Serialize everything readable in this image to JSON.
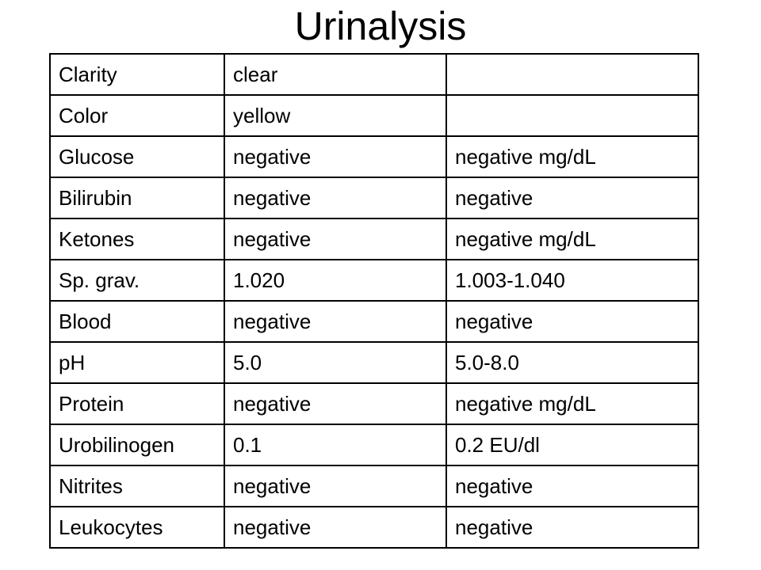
{
  "header": {
    "title": "Urinalysis"
  },
  "table": {
    "rows": [
      [
        "Clarity",
        "clear"
      ],
      [
        "Color",
        "yellow"
      ],
      [
        "Glucose",
        "negative",
        "negative mg/dL"
      ],
      [
        "Bilirubin",
        "negative",
        "negative"
      ],
      [
        "Ketones",
        "negative",
        "negative mg/dL"
      ],
      [
        "Sp. grav.",
        "1.020",
        "1.003-1.040"
      ],
      [
        "Blood",
        "negative",
        "negative"
      ],
      [
        "pH",
        "5.0",
        "5.0-8.0"
      ],
      [
        "Protein",
        "negative",
        "negative mg/dL"
      ],
      [
        "Urobilinogen",
        "0.1",
        "0.2 EU/dl"
      ],
      [
        "Nitrites",
        "negative",
        "negative"
      ],
      [
        "Leukocytes",
        "negative",
        "negative"
      ]
    ]
  }
}
